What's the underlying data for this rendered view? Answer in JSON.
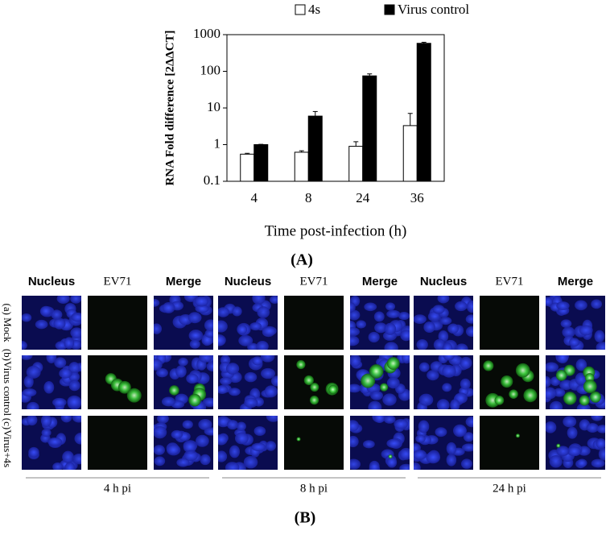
{
  "chart_data": {
    "type": "bar",
    "panel_label": "(A)",
    "x_label": "Time post-infection (h)",
    "y_label": "RNA Fold difference [2ΔΔCT]",
    "categories": [
      "4",
      "8",
      "24",
      "36"
    ],
    "series": [
      {
        "name": "4s",
        "color": "#ffffff",
        "values": [
          0.55,
          0.62,
          0.9,
          3.3
        ],
        "errors": [
          0.03,
          0.06,
          0.3,
          3.8
        ]
      },
      {
        "name": "Virus control",
        "color": "#000000",
        "values": [
          1.0,
          6.0,
          75,
          580
        ],
        "errors": [
          0.02,
          2,
          10,
          40
        ]
      }
    ],
    "log_scale": true,
    "ylim": [
      0.1,
      1000
    ],
    "yticks": [
      0.1,
      1,
      10,
      100,
      1000
    ],
    "legend": "top"
  },
  "panel_b": {
    "label": "(B)",
    "rows": [
      "(a) Mock",
      "(b)Virus control",
      "(c)Virus+4s"
    ],
    "groups": [
      {
        "headers": [
          "Nucleus",
          "EV71",
          "Merge"
        ],
        "label": "4 h pi"
      },
      {
        "headers": [
          "Nucleus",
          "EV71",
          "Merge"
        ],
        "label": "8 h pi"
      },
      {
        "headers": [
          "Nucleus",
          "EV71",
          "Merge"
        ],
        "label": "24 h pi"
      }
    ]
  }
}
